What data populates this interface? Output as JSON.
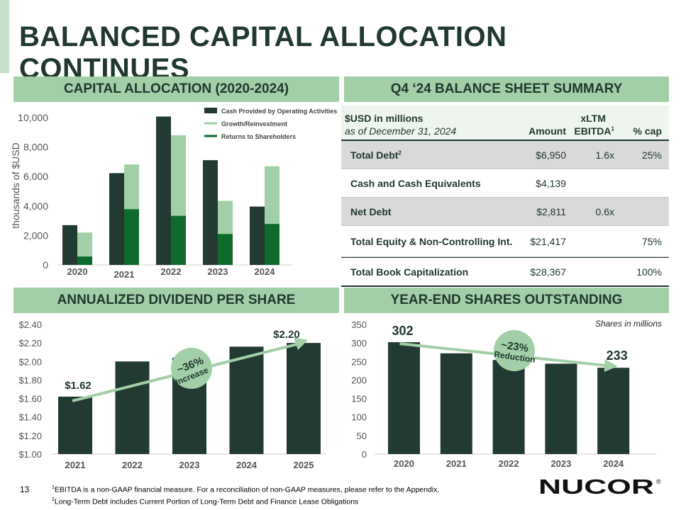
{
  "slide": {
    "title": "BALANCED CAPITAL ALLOCATION CONTINUES",
    "page_number": "13",
    "footnote_1_sup": "1",
    "footnote_1": "EBITDA is a non-GAAP financial measure. For a reconciliation of non-GAAP measures, please refer to the Appendix.",
    "footnote_2_sup": "2",
    "footnote_2": "Long-Term Debt includes Current Portion of Long-Term Debt and Finance Lease Obligations",
    "logo_text": "NUCOR",
    "logo_mark": "®"
  },
  "sections": {
    "capital_allocation": "CAPITAL ALLOCATION (2020-2024)",
    "balance_sheet": "Q4 ‘24 BALANCE SHEET SUMMARY",
    "dividend": "ANNUALIZED DIVIDEND PER SHARE",
    "shares": "YEAR-END SHARES OUTSTANDING"
  },
  "colors": {
    "dark_green": "#233a33",
    "light_green": "#a2cfa7",
    "bright_green": "#0f6b2d",
    "header_green": "#a3cfa8",
    "text_dark": "#20382e"
  },
  "balance_sheet": {
    "header": {
      "label_line1": "$USD in millions",
      "label_line2": "as of December 31, 2024",
      "amount": "Amount",
      "ebitda_line1": "xLTM",
      "ebitda_line2": "EBITDA",
      "ebitda_sup": "1",
      "cap": "% cap"
    },
    "rows": [
      {
        "label": "Total Debt",
        "label_sup": "2",
        "amount": "$6,950",
        "ebitda": "1.6x",
        "cap": "25%"
      },
      {
        "label": "Cash and Cash Equivalents",
        "label_sup": "",
        "amount": "$4,139",
        "ebitda": "",
        "cap": ""
      },
      {
        "label": "Net Debt",
        "label_sup": "",
        "amount": "$2,811",
        "ebitda": "0.6x",
        "cap": ""
      },
      {
        "label": "Total Equity & Non-Controlling Int.",
        "label_sup": "",
        "amount": "$21,417",
        "ebitda": "",
        "cap": "75%"
      },
      {
        "label": "Total Book Capitalization",
        "label_sup": "",
        "amount": "$28,367",
        "ebitda": "",
        "cap": "100%"
      }
    ]
  },
  "chart_data": [
    {
      "type": "bar",
      "title": "CAPITAL ALLOCATION (2020-2024)",
      "categories": [
        "2020",
        "2021",
        "2022",
        "2023",
        "2024"
      ],
      "series": [
        {
          "name": "Cash Provided by Operating Activities",
          "values": [
            2700,
            6230,
            10070,
            7110,
            3960
          ]
        },
        {
          "name": "Growth/Reinvestment",
          "values": [
            2200,
            6820,
            8800,
            4350,
            6700
          ]
        },
        {
          "name": "Returns to Shareholders",
          "values": [
            570,
            3780,
            3330,
            2100,
            2780
          ]
        }
      ],
      "ylabel": "thousands of $USD",
      "ylim": [
        0,
        10000
      ],
      "yticks": [
        "0",
        "2,000",
        "4,000",
        "6,000",
        "8,000",
        "10,000"
      ],
      "ytick_values": [
        0,
        2000,
        4000,
        6000,
        8000,
        10000
      ],
      "legend": "top-right"
    },
    {
      "type": "bar",
      "title": "ANNUALIZED DIVIDEND PER SHARE",
      "categories": [
        "2021",
        "2022",
        "2023",
        "2024",
        "2025"
      ],
      "values": [
        1.62,
        2.0,
        2.04,
        2.16,
        2.2
      ],
      "ylim": [
        1.0,
        2.4
      ],
      "yticks": [
        "$1.00",
        "$1.20",
        "$1.40",
        "$1.60",
        "$1.80",
        "$2.00",
        "$2.20",
        "$2.40"
      ],
      "ytick_values": [
        1.0,
        1.2,
        1.4,
        1.6,
        1.8,
        2.0,
        2.2,
        2.4
      ],
      "data_labels": [
        {
          "category": "2021",
          "text": "$1.62"
        },
        {
          "category": "2025",
          "text": "$2.20"
        }
      ],
      "trend_callout_line1": "~36%",
      "trend_callout_line2": "Increase"
    },
    {
      "type": "bar",
      "title": "YEAR-END SHARES OUTSTANDING",
      "subtitle": "Shares in millions",
      "categories": [
        "2020",
        "2021",
        "2022",
        "2023",
        "2024"
      ],
      "values": [
        302,
        272,
        254,
        244,
        233
      ],
      "ylim": [
        0,
        350
      ],
      "yticks": [
        "0",
        "50",
        "100",
        "150",
        "200",
        "250",
        "300",
        "350"
      ],
      "ytick_values": [
        0,
        50,
        100,
        150,
        200,
        250,
        300,
        350
      ],
      "data_labels": [
        {
          "category": "2020",
          "text": "302"
        },
        {
          "category": "2024",
          "text": "233"
        }
      ],
      "trend_callout_line1": "~23%",
      "trend_callout_line2": "Reduction"
    }
  ]
}
